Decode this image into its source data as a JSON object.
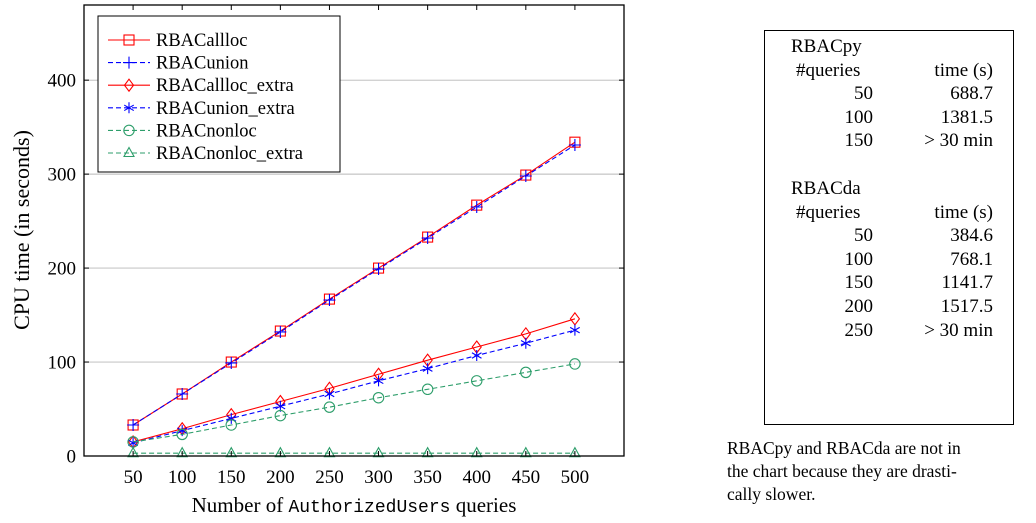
{
  "chart_data": {
    "type": "line",
    "xlabel_parts": [
      "Number of ",
      "AuthorizedUsers",
      " queries"
    ],
    "ylabel": "CPU time (in seconds)",
    "x": [
      50,
      100,
      150,
      200,
      250,
      300,
      350,
      400,
      450,
      500
    ],
    "x_ticks": [
      "50",
      "100",
      "150",
      "200",
      "250",
      "300",
      "350",
      "400",
      "450",
      "500"
    ],
    "y_ticks": [
      "0",
      "100",
      "200",
      "300",
      "400"
    ],
    "y_tick_values": [
      0,
      100,
      200,
      300,
      400
    ],
    "xlim": [
      0,
      550
    ],
    "ylim": [
      0,
      480
    ],
    "grid": "horizontal",
    "legend_position": "top-left",
    "series": [
      {
        "name": "RBACallloc",
        "color": "#ff0000",
        "dash": "solid",
        "marker": "square",
        "values": [
          33,
          66,
          100,
          133,
          167,
          200,
          233,
          267,
          299,
          334
        ]
      },
      {
        "name": "RBACunion",
        "color": "#0000ff",
        "dash": "dashed",
        "marker": "plus",
        "values": [
          33,
          66,
          99,
          132,
          166,
          199,
          232,
          265,
          298,
          331
        ]
      },
      {
        "name": "RBACallloc_extra",
        "color": "#ff0000",
        "dash": "solid",
        "marker": "diamond",
        "values": [
          15,
          29,
          44,
          58,
          72,
          87,
          102,
          116,
          130,
          146
        ]
      },
      {
        "name": "RBACunion_extra",
        "color": "#0000ff",
        "dash": "dashed",
        "marker": "star",
        "values": [
          14,
          27,
          40,
          53,
          66,
          80,
          93,
          107,
          120,
          134
        ]
      },
      {
        "name": "RBACnonloc",
        "color": "#2e9e6b",
        "dash": "dashed",
        "marker": "circle",
        "values": [
          15,
          23,
          33,
          43,
          52,
          62,
          71,
          80,
          89,
          98
        ]
      },
      {
        "name": "RBACnonloc_extra",
        "color": "#2e9e6b",
        "dash": "dashed",
        "marker": "triangle",
        "values": [
          3,
          3,
          3,
          3,
          3,
          3,
          3,
          3,
          3,
          3
        ]
      }
    ]
  },
  "side_table": {
    "sections": [
      {
        "name": "RBACpy",
        "col1": "#queries",
        "col2": "time (s)",
        "rows": [
          [
            "50",
            "688.7"
          ],
          [
            "100",
            "1381.5"
          ],
          [
            "150",
            "> 30 min"
          ]
        ]
      },
      {
        "name": "RBACda",
        "col1": "#queries",
        "col2": "time (s)",
        "rows": [
          [
            "50",
            "384.6"
          ],
          [
            "100",
            "768.1"
          ],
          [
            "150",
            "1141.7"
          ],
          [
            "200",
            "1517.5"
          ],
          [
            "250",
            "> 30 min"
          ]
        ]
      }
    ]
  },
  "note_lines": [
    "RBACpy and RBACda are not in",
    "the chart because they are drasti-",
    "cally slower."
  ]
}
